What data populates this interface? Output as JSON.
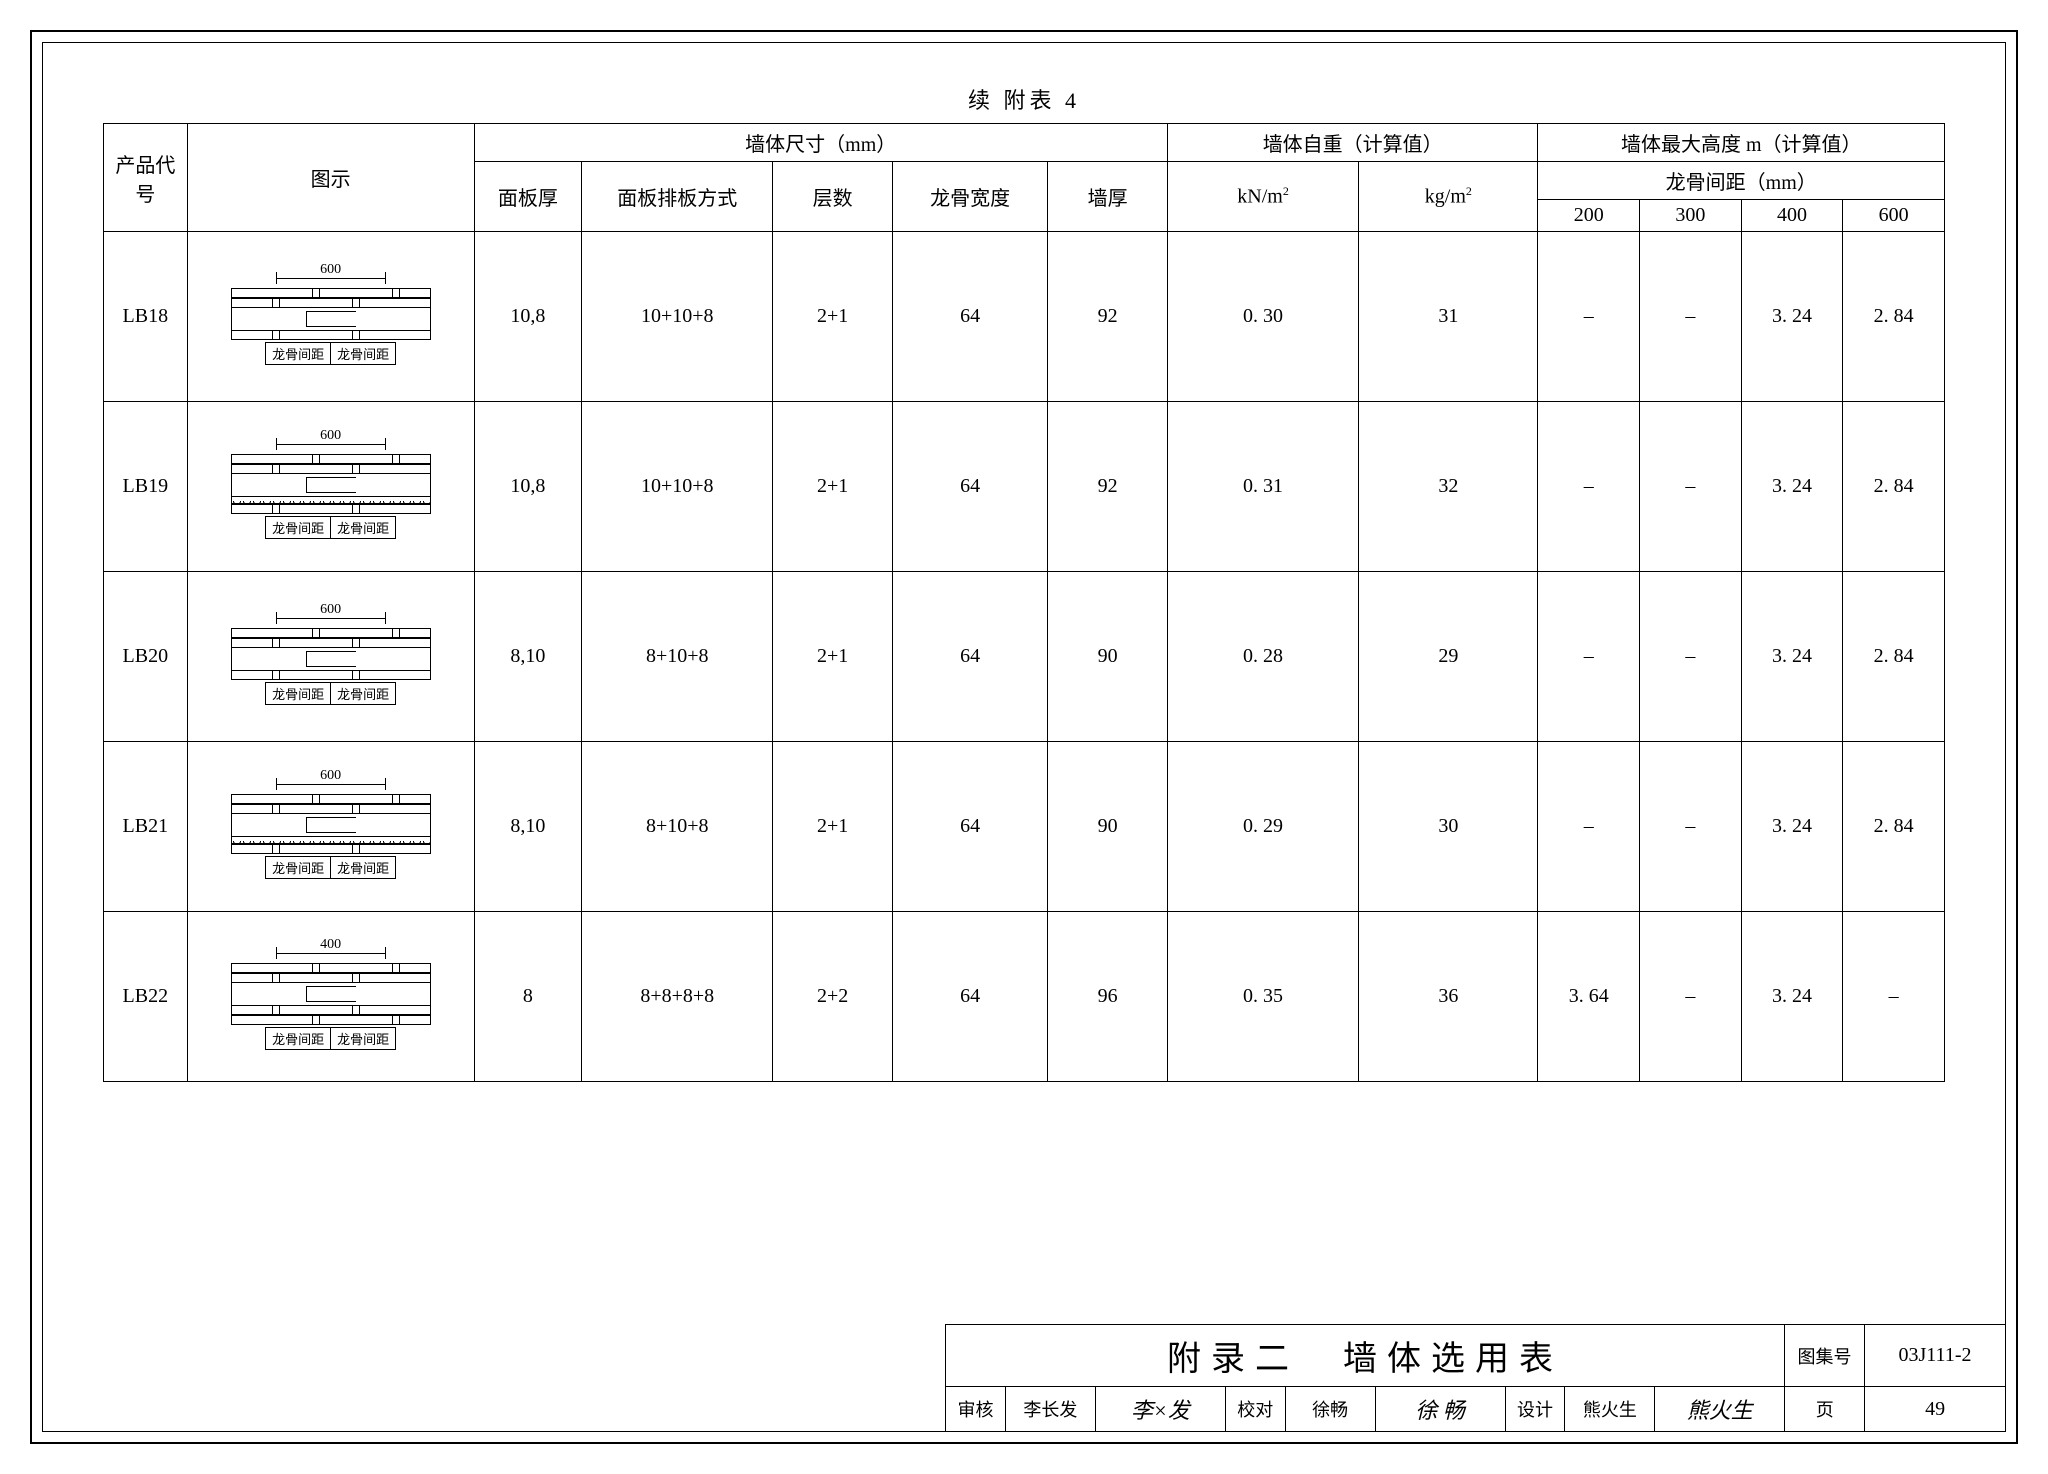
{
  "caption": "续 附表 4",
  "headers": {
    "code": "产品代号",
    "diagram": "图示",
    "dim_group": "墙体尺寸（mm）",
    "panel_thick": "面板厚",
    "arrangement": "面板排板方式",
    "layers": "层数",
    "keel_width": "龙骨宽度",
    "wall_thick": "墙厚",
    "weight_group": "墙体自重（计算值）",
    "kn": "kN/m²",
    "kg": "kg/m²",
    "height_group": "墙体最大高度 m（计算值）",
    "spacing_group": "龙骨间距（mm）",
    "sp200": "200",
    "sp300": "300",
    "sp400": "400",
    "sp600": "600"
  },
  "diagram_labels": {
    "span_600": "600",
    "span_400": "400",
    "keel_spacing": "龙骨间距"
  },
  "rows": [
    {
      "code": "LB18",
      "span": "600",
      "wavy": false,
      "panel_thick": "10,8",
      "arrangement": "10+10+8",
      "layers": "2+1",
      "keel_width": "64",
      "wall_thick": "92",
      "kn": "0. 30",
      "kg": "31",
      "sp200": "–",
      "sp300": "–",
      "sp400": "3. 24",
      "sp600": "2. 84"
    },
    {
      "code": "LB19",
      "span": "600",
      "wavy": true,
      "panel_thick": "10,8",
      "arrangement": "10+10+8",
      "layers": "2+1",
      "keel_width": "64",
      "wall_thick": "92",
      "kn": "0. 31",
      "kg": "32",
      "sp200": "–",
      "sp300": "–",
      "sp400": "3. 24",
      "sp600": "2. 84"
    },
    {
      "code": "LB20",
      "span": "600",
      "wavy": false,
      "panel_thick": "8,10",
      "arrangement": "8+10+8",
      "layers": "2+1",
      "keel_width": "64",
      "wall_thick": "90",
      "kn": "0. 28",
      "kg": "29",
      "sp200": "–",
      "sp300": "–",
      "sp400": "3. 24",
      "sp600": "2. 84"
    },
    {
      "code": "LB21",
      "span": "600",
      "wavy": true,
      "panel_thick": "8,10",
      "arrangement": "8+10+8",
      "layers": "2+1",
      "keel_width": "64",
      "wall_thick": "90",
      "kn": "0. 29",
      "kg": "30",
      "sp200": "–",
      "sp300": "–",
      "sp400": "3. 24",
      "sp600": "2. 84"
    },
    {
      "code": "LB22",
      "span": "400",
      "wavy": false,
      "panel_thick": "8",
      "arrangement": "8+8+8+8",
      "layers": "2+2",
      "keel_width": "64",
      "wall_thick": "96",
      "kn": "0. 35",
      "kg": "36",
      "sp200": "3. 64",
      "sp300": "–",
      "sp400": "3. 24",
      "sp600": "–"
    }
  ],
  "title_block": {
    "title": "附录二　墙体选用表",
    "atlas_label": "图集号",
    "atlas_value": "03J111-2",
    "page_label": "页",
    "page_value": "49",
    "review_label": "审核",
    "reviewer": "李长发",
    "check_label": "校对",
    "checker": "徐畅",
    "design_label": "设计",
    "designer": "熊火生"
  }
}
